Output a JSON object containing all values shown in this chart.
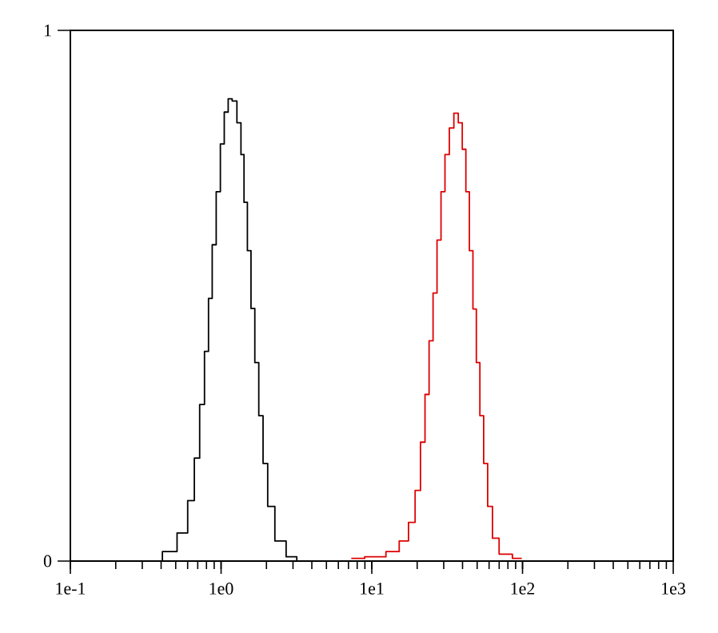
{
  "chart_data": {
    "type": "step",
    "log": "x",
    "grid": false,
    "marker": "none",
    "line_style": "solid",
    "xlim": [
      0.1,
      1000
    ],
    "ylim": [
      0,
      1
    ],
    "xticks": [
      {
        "value": 0.1,
        "label": "1e-1"
      },
      {
        "value": 1,
        "label": "1e0"
      },
      {
        "value": 10,
        "label": "1e1"
      },
      {
        "value": 100,
        "label": "1e2"
      },
      {
        "value": 1000,
        "label": "1e3"
      }
    ],
    "yticks": [
      0,
      1
    ],
    "series": [
      {
        "color": "#000000",
        "x": [
          0.361,
          0.461,
          0.565,
          0.638,
          0.692,
          0.751,
          0.802,
          0.849,
          0.898,
          0.959,
          1.02,
          1.08,
          1.15,
          1.22,
          1.33,
          1.38,
          1.46,
          1.53,
          1.63,
          1.72,
          1.84,
          1.96,
          2.12,
          2.44,
          2.99,
          3.38
        ],
        "values": [
          0,
          0.018,
          0.053,
          0.114,
          0.194,
          0.295,
          0.395,
          0.495,
          0.596,
          0.696,
          0.786,
          0.846,
          0.871,
          0.867,
          0.826,
          0.766,
          0.676,
          0.585,
          0.476,
          0.374,
          0.274,
          0.184,
          0.103,
          0.038,
          0.008,
          0
        ]
      },
      {
        "color": "#dd0000",
        "x": [
          7.31,
          11.0,
          14.0,
          16.5,
          18.6,
          20.2,
          21.9,
          23.2,
          24.8,
          26.2,
          28.0,
          29.6,
          31.6,
          33.8,
          36.3,
          38.7,
          41.0,
          43.2,
          45.6,
          48.2,
          50.6,
          53.7,
          56.8,
          60.7,
          65.8,
          74.3,
          98.8
        ],
        "values": [
          0.005,
          0.008,
          0.018,
          0.038,
          0.073,
          0.133,
          0.224,
          0.314,
          0.415,
          0.505,
          0.605,
          0.696,
          0.766,
          0.816,
          0.844,
          0.826,
          0.776,
          0.696,
          0.585,
          0.475,
          0.374,
          0.274,
          0.184,
          0.103,
          0.043,
          0.013,
          0.005
        ]
      }
    ]
  }
}
